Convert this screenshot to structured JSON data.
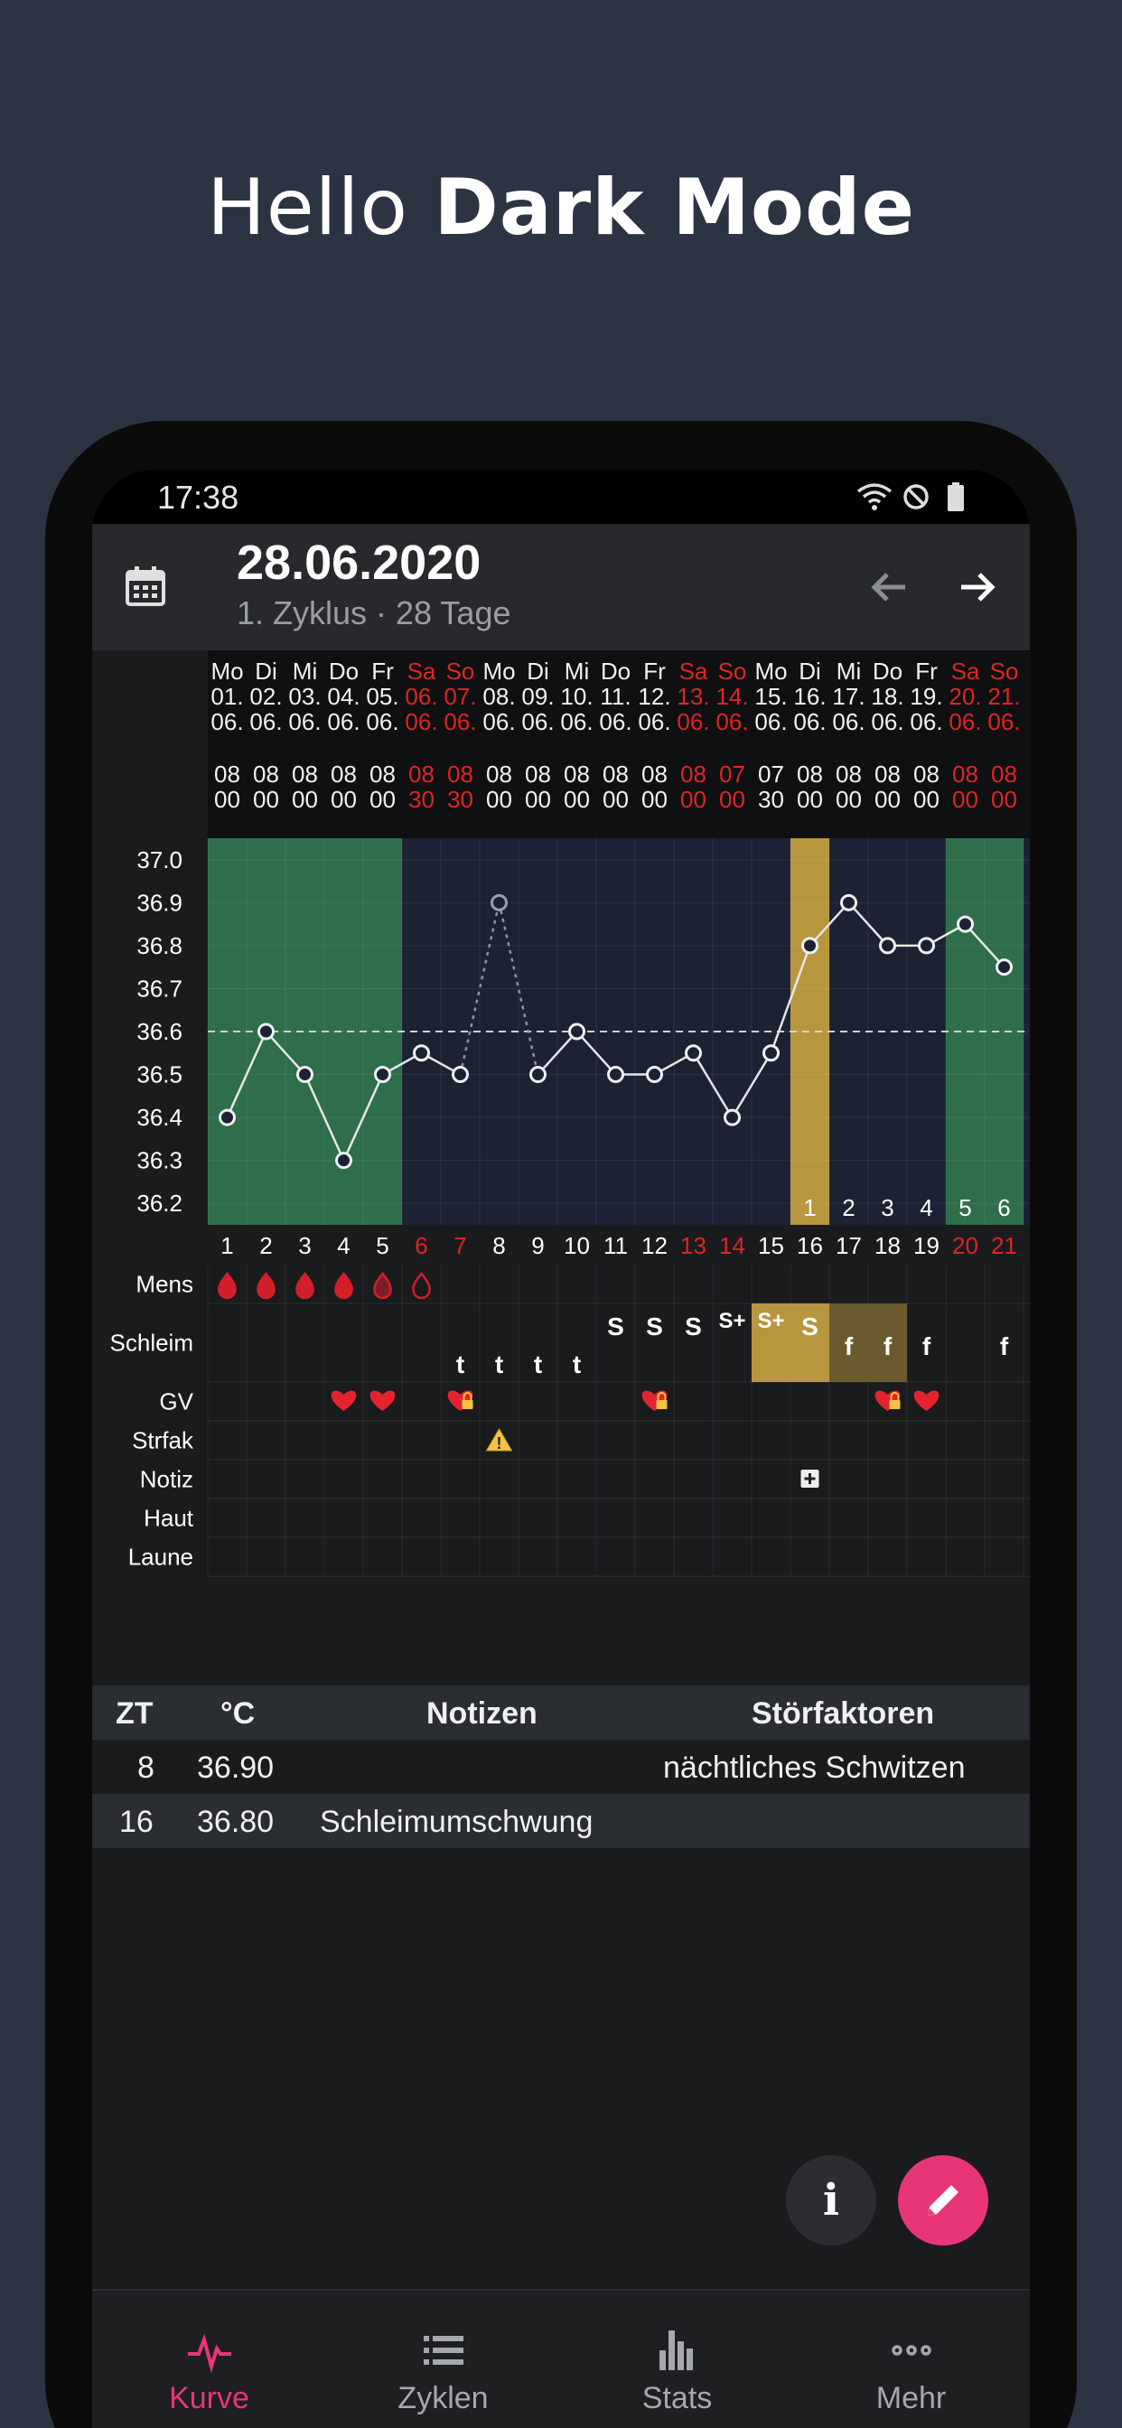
{
  "hero": {
    "prefix": "Hello",
    "bold": "Dark Mode"
  },
  "status": {
    "time": "17:38"
  },
  "appbar": {
    "date": "28.06.2020",
    "subtitle": "1. Zyklus · 28 Tage"
  },
  "colors": {
    "accent": "#e8357a",
    "weekend": "#e02424",
    "fertile": "#2f6e4a",
    "peak": "#b8963e",
    "line": "#e6e6e6"
  },
  "days": [
    {
      "wd": "Mo",
      "d": "01.",
      "m": "06.",
      "th": "08",
      "tm": "00",
      "we": false
    },
    {
      "wd": "Di",
      "d": "02.",
      "m": "06.",
      "th": "08",
      "tm": "00",
      "we": false
    },
    {
      "wd": "Mi",
      "d": "03.",
      "m": "06.",
      "th": "08",
      "tm": "00",
      "we": false
    },
    {
      "wd": "Do",
      "d": "04.",
      "m": "06.",
      "th": "08",
      "tm": "00",
      "we": false
    },
    {
      "wd": "Fr",
      "d": "05.",
      "m": "06.",
      "th": "08",
      "tm": "00",
      "we": false
    },
    {
      "wd": "Sa",
      "d": "06.",
      "m": "06.",
      "th": "08",
      "tm": "30",
      "we": true
    },
    {
      "wd": "So",
      "d": "07.",
      "m": "06.",
      "th": "08",
      "tm": "30",
      "we": true
    },
    {
      "wd": "Mo",
      "d": "08.",
      "m": "06.",
      "th": "08",
      "tm": "00",
      "we": false
    },
    {
      "wd": "Di",
      "d": "09.",
      "m": "06.",
      "th": "08",
      "tm": "00",
      "we": false
    },
    {
      "wd": "Mi",
      "d": "10.",
      "m": "06.",
      "th": "08",
      "tm": "00",
      "we": false
    },
    {
      "wd": "Do",
      "d": "11.",
      "m": "06.",
      "th": "08",
      "tm": "00",
      "we": false
    },
    {
      "wd": "Fr",
      "d": "12.",
      "m": "06.",
      "th": "08",
      "tm": "00",
      "we": false
    },
    {
      "wd": "Sa",
      "d": "13.",
      "m": "06.",
      "th": "08",
      "tm": "00",
      "we": true
    },
    {
      "wd": "So",
      "d": "14.",
      "m": "06.",
      "th": "07",
      "tm": "00",
      "we": true
    },
    {
      "wd": "Mo",
      "d": "15.",
      "m": "06.",
      "th": "07",
      "tm": "30",
      "we": false
    },
    {
      "wd": "Di",
      "d": "16.",
      "m": "06.",
      "th": "08",
      "tm": "00",
      "we": false
    },
    {
      "wd": "Mi",
      "d": "17.",
      "m": "06.",
      "th": "08",
      "tm": "00",
      "we": false
    },
    {
      "wd": "Do",
      "d": "18.",
      "m": "06.",
      "th": "08",
      "tm": "00",
      "we": false
    },
    {
      "wd": "Fr",
      "d": "19.",
      "m": "06.",
      "th": "08",
      "tm": "00",
      "we": false
    },
    {
      "wd": "Sa",
      "d": "20.",
      "m": "06.",
      "th": "08",
      "tm": "00",
      "we": true
    },
    {
      "wd": "So",
      "d": "21.",
      "m": "06.",
      "th": "08",
      "tm": "00",
      "we": true
    }
  ],
  "chart_data": {
    "type": "line",
    "x": [
      1,
      2,
      3,
      4,
      5,
      6,
      7,
      8,
      9,
      10,
      11,
      12,
      13,
      14,
      15,
      16,
      17,
      18,
      19,
      20,
      21
    ],
    "values": [
      36.4,
      36.6,
      36.5,
      36.3,
      36.5,
      36.55,
      36.5,
      36.9,
      36.5,
      36.6,
      36.5,
      36.5,
      36.55,
      36.4,
      36.55,
      36.8,
      36.9,
      36.8,
      36.8,
      36.85,
      36.75
    ],
    "excluded_x": [
      8
    ],
    "ylim": [
      36.15,
      37.05
    ],
    "yticks": [
      "37.0",
      "36.9",
      "36.8",
      "36.7",
      "36.6",
      "36.5",
      "36.4",
      "36.3",
      "36.2"
    ],
    "coverline": 36.6,
    "infertile_days": [
      1,
      2,
      3,
      4,
      5,
      20,
      21
    ],
    "peak_day": 16,
    "post_peak_labels": [
      "1",
      "2",
      "3",
      "4",
      "5",
      "6"
    ],
    "weekend_days": [
      6,
      7,
      13,
      14,
      20,
      21
    ]
  },
  "symptoms": {
    "row_labels": [
      "Mens",
      "Schleim",
      "GV",
      "Strfak",
      "Notiz",
      "Haut",
      "Laune"
    ],
    "schleim": [
      {
        "day": 7,
        "t": "t"
      },
      {
        "day": 8,
        "t": "t"
      },
      {
        "day": 9,
        "t": "t"
      },
      {
        "day": 10,
        "t": "t"
      },
      {
        "day": 11,
        "t": "S"
      },
      {
        "day": 12,
        "t": "S"
      },
      {
        "day": 13,
        "t": "S"
      },
      {
        "day": 14,
        "t": "S+"
      },
      {
        "day": 15,
        "t": "S+"
      },
      {
        "day": 16,
        "t": "S"
      },
      {
        "day": 17,
        "t": "f"
      },
      {
        "day": 18,
        "t": "f"
      },
      {
        "day": 19,
        "t": "f"
      },
      {
        "day": 21,
        "t": "f"
      }
    ],
    "gv_hearts": [
      4,
      5,
      19
    ],
    "gv_locked": [
      7,
      12,
      18
    ]
  },
  "table": {
    "headers": [
      "ZT",
      "°C",
      "Notizen",
      "Störfaktoren"
    ],
    "rows": [
      {
        "zt": "8",
        "temp": "36.90",
        "note": "",
        "stor": "nächtliches Schwitzen"
      },
      {
        "zt": "16",
        "temp": "36.80",
        "note": "Schleimumschwung",
        "stor": ""
      }
    ]
  },
  "fab": {
    "info": "i"
  },
  "nav": [
    {
      "label": "Kurve",
      "icon": "pulse-icon",
      "active": true
    },
    {
      "label": "Zyklen",
      "icon": "list-icon",
      "active": false
    },
    {
      "label": "Stats",
      "icon": "bar-chart-icon",
      "active": false
    },
    {
      "label": "Mehr",
      "icon": "more-icon",
      "active": false
    }
  ]
}
